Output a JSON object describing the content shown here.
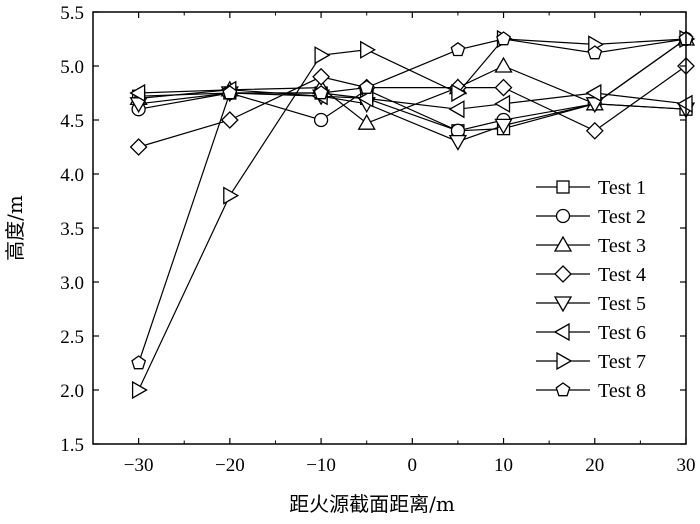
{
  "chart_data": {
    "type": "line",
    "title": "",
    "xlabel": "距火源截面距离/m",
    "ylabel": "高度/m",
    "xlim": [
      -35,
      30
    ],
    "ylim": [
      1.5,
      5.5
    ],
    "xticks": [
      -30,
      -20,
      -10,
      0,
      10,
      20,
      30
    ],
    "yticks": [
      1.5,
      2.0,
      2.5,
      3.0,
      3.5,
      4.0,
      4.5,
      5.0,
      5.5
    ],
    "xtick_labels": [
      "−30",
      "−20",
      "−10",
      "0",
      "10",
      "20",
      "30"
    ],
    "ytick_labels": [
      "1.5",
      "2.0",
      "2.5",
      "3.0",
      "3.5",
      "4.0",
      "4.5",
      "5.0",
      "5.5"
    ],
    "grid": false,
    "legend_position": "right",
    "x": [
      -30,
      -20,
      -10,
      -5,
      5,
      10,
      20,
      30
    ],
    "series": [
      {
        "name": "Test 1",
        "marker": "square",
        "values": [
          4.72,
          4.75,
          4.75,
          4.7,
          4.4,
          4.42,
          4.65,
          4.6
        ]
      },
      {
        "name": "Test 2",
        "marker": "circle",
        "values": [
          4.6,
          4.75,
          4.5,
          4.78,
          4.4,
          4.5,
          4.65,
          5.25
        ]
      },
      {
        "name": "Test 3",
        "marker": "triangle-up",
        "values": [
          4.7,
          4.78,
          4.8,
          4.47,
          4.8,
          5.0,
          4.65,
          5.25
        ]
      },
      {
        "name": "Test 4",
        "marker": "diamond",
        "values": [
          4.25,
          4.5,
          4.9,
          4.8,
          4.8,
          4.8,
          4.4,
          5.0
        ]
      },
      {
        "name": "Test 5",
        "marker": "triangle-down",
        "values": [
          4.65,
          4.75,
          4.72,
          4.65,
          4.3,
          4.45,
          4.65,
          4.6
        ]
      },
      {
        "name": "Test 6",
        "marker": "triangle-left",
        "values": [
          4.75,
          4.78,
          4.72,
          4.7,
          4.6,
          4.65,
          4.75,
          4.65
        ]
      },
      {
        "name": "Test 7",
        "marker": "triangle-right",
        "values": [
          2.0,
          3.8,
          5.1,
          5.15,
          4.75,
          5.25,
          5.2,
          5.25
        ]
      },
      {
        "name": "Test 8",
        "marker": "pentagon",
        "values": [
          2.25,
          4.75,
          4.75,
          4.8,
          5.15,
          5.25,
          5.12,
          5.25
        ]
      }
    ]
  }
}
